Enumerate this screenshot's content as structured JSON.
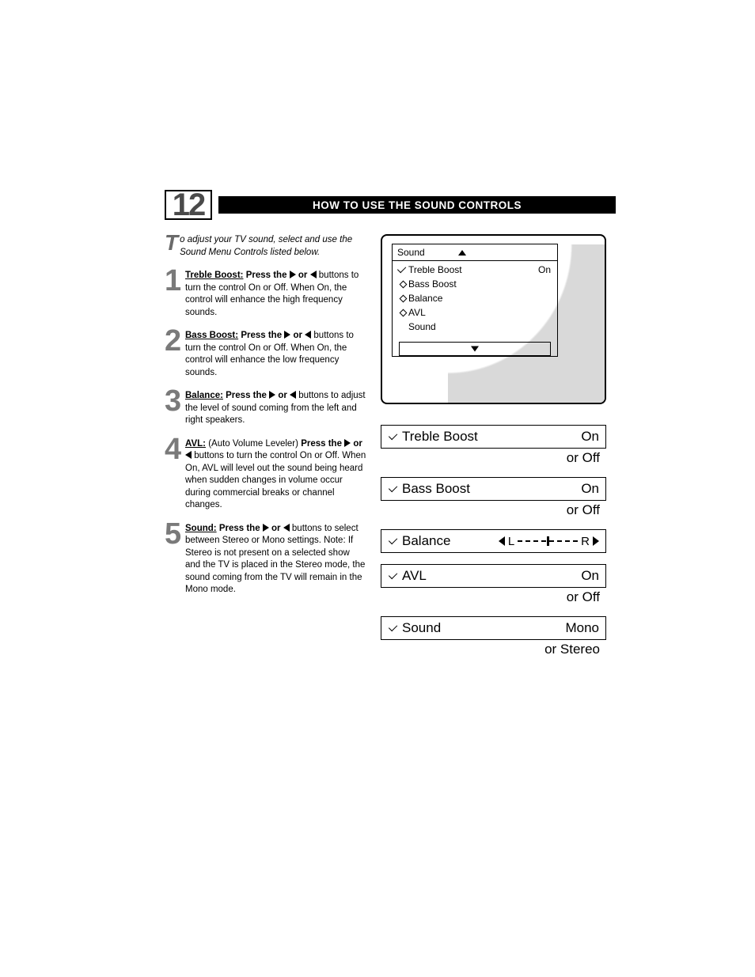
{
  "chapter_number": "12",
  "title": "HOW TO USE THE SOUND CONTROLS",
  "intro": {
    "dropcap": "T",
    "rest": "o adjust your TV sound, select and use the Sound Menu Controls listed below."
  },
  "steps": [
    {
      "num": "1",
      "term": "Treble Boost:",
      "lead": "Press the",
      "tail": "buttons to turn the control On or Off. When On, the control will enhance the high frequency sounds."
    },
    {
      "num": "2",
      "term": "Bass Boost:",
      "lead": "Press the",
      "tail": "buttons to turn the control On or Off. When On, the control will enhance the low frequency sounds."
    },
    {
      "num": "3",
      "term": "Balance:",
      "lead": "Press the",
      "tail": "buttons to adjust the level of sound coming from the left and right speakers."
    },
    {
      "num": "4",
      "term": "AVL:",
      "lead": "(Auto Volume Leveler)",
      "mid": "Press the",
      "tail": "buttons to turn the control On or Off. When On, AVL will level out the sound being heard when sudden changes in volume occur during commercial breaks or channel changes."
    },
    {
      "num": "5",
      "term": "Sound:",
      "lead": "Press the",
      "tail": "buttons to select between Stereo or Mono settings. Note: If Stereo is not present on a selected show and the TV is placed in the Stereo mode, the sound coming from the TV will remain in the Mono mode."
    }
  ],
  "osd": {
    "header": "Sound",
    "rows": [
      {
        "marker": "check",
        "label": "Treble Boost",
        "value": "On"
      },
      {
        "marker": "diamond",
        "label": "Bass Boost",
        "value": ""
      },
      {
        "marker": "diamond",
        "label": "Balance",
        "value": ""
      },
      {
        "marker": "diamond",
        "label": "AVL",
        "value": ""
      },
      {
        "marker": "none",
        "label": "Sound",
        "value": ""
      }
    ]
  },
  "details": [
    {
      "type": "toggle",
      "name": "Treble Boost",
      "value": "On",
      "alt": "or Off"
    },
    {
      "type": "toggle",
      "name": "Bass Boost",
      "value": "On",
      "alt": "or Off"
    },
    {
      "type": "balance",
      "name": "Balance",
      "left": "L",
      "right": "R"
    },
    {
      "type": "toggle",
      "name": "AVL",
      "value": "On",
      "alt": "or Off"
    },
    {
      "type": "toggle",
      "name": "Sound",
      "value": "Mono",
      "alt": "or Stereo"
    }
  ],
  "connector": "or"
}
